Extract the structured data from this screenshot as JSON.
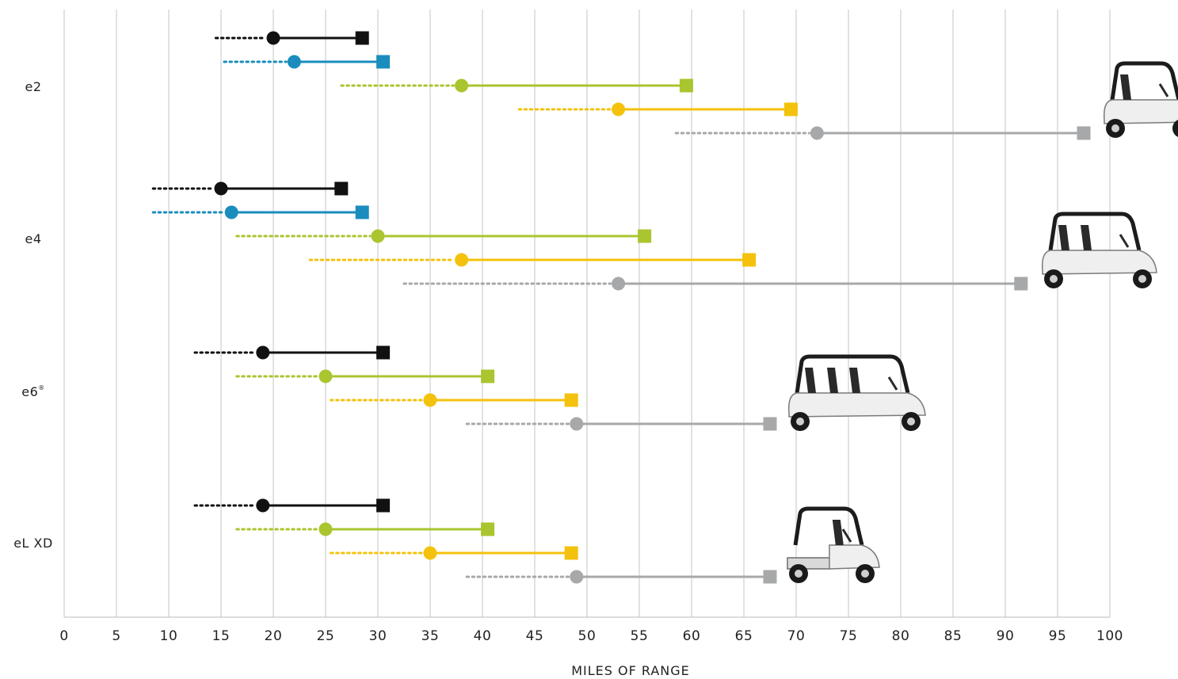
{
  "chart_data": {
    "type": "dumbbell",
    "xlabel": "MILES OF RANGE",
    "xlim": [
      0,
      100
    ],
    "x_ticks": [
      0,
      5,
      10,
      15,
      20,
      25,
      30,
      35,
      40,
      45,
      50,
      55,
      60,
      65,
      70,
      75,
      80,
      85,
      90,
      95,
      100
    ],
    "grid": "vertical",
    "series_colors": [
      "#111111",
      "#1a8dbd",
      "#a9c52f",
      "#f4c20d",
      "#a7a8aa"
    ],
    "groups": [
      {
        "label": "e2",
        "vehicle_icon": "two-seat-cart",
        "rows": [
          {
            "color_index": 0,
            "dotted_start": 14.5,
            "circle": 20,
            "square": 28.5
          },
          {
            "color_index": 1,
            "dotted_start": 15.3,
            "circle": 22,
            "square": 30.5
          },
          {
            "color_index": 2,
            "dotted_start": 26.5,
            "circle": 38,
            "square": 59.5
          },
          {
            "color_index": 3,
            "dotted_start": 43.5,
            "circle": 53,
            "square": 69.5
          },
          {
            "color_index": 4,
            "dotted_start": 58.5,
            "circle": 72,
            "square": 97.5
          }
        ]
      },
      {
        "label": "e4",
        "vehicle_icon": "four-seat-cart",
        "rows": [
          {
            "color_index": 0,
            "dotted_start": 8.5,
            "circle": 15,
            "square": 26.5
          },
          {
            "color_index": 1,
            "dotted_start": 8.5,
            "circle": 16,
            "square": 28.5
          },
          {
            "color_index": 2,
            "dotted_start": 16.5,
            "circle": 30,
            "square": 55.5
          },
          {
            "color_index": 3,
            "dotted_start": 23.5,
            "circle": 38,
            "square": 65.5
          },
          {
            "color_index": 4,
            "dotted_start": 32.5,
            "circle": 53,
            "square": 91.5
          }
        ]
      },
      {
        "label": "e6",
        "label_sup": "®",
        "vehicle_icon": "six-seat-cart",
        "rows": [
          {
            "color_index": 0,
            "dotted_start": 12.5,
            "circle": 19,
            "square": 30.5
          },
          {
            "color_index": 2,
            "dotted_start": 16.5,
            "circle": 25,
            "square": 40.5
          },
          {
            "color_index": 3,
            "dotted_start": 25.5,
            "circle": 35,
            "square": 48.5
          },
          {
            "color_index": 4,
            "dotted_start": 38.5,
            "circle": 49,
            "square": 67.5
          }
        ]
      },
      {
        "label": "eL XD",
        "vehicle_icon": "utility-cart",
        "rows": [
          {
            "color_index": 0,
            "dotted_start": 12.5,
            "circle": 19,
            "square": 30.5
          },
          {
            "color_index": 2,
            "dotted_start": 16.5,
            "circle": 25,
            "square": 40.5
          },
          {
            "color_index": 3,
            "dotted_start": 25.5,
            "circle": 35,
            "square": 48.5
          },
          {
            "color_index": 4,
            "dotted_start": 38.5,
            "circle": 49,
            "square": 67.5
          }
        ]
      }
    ]
  }
}
